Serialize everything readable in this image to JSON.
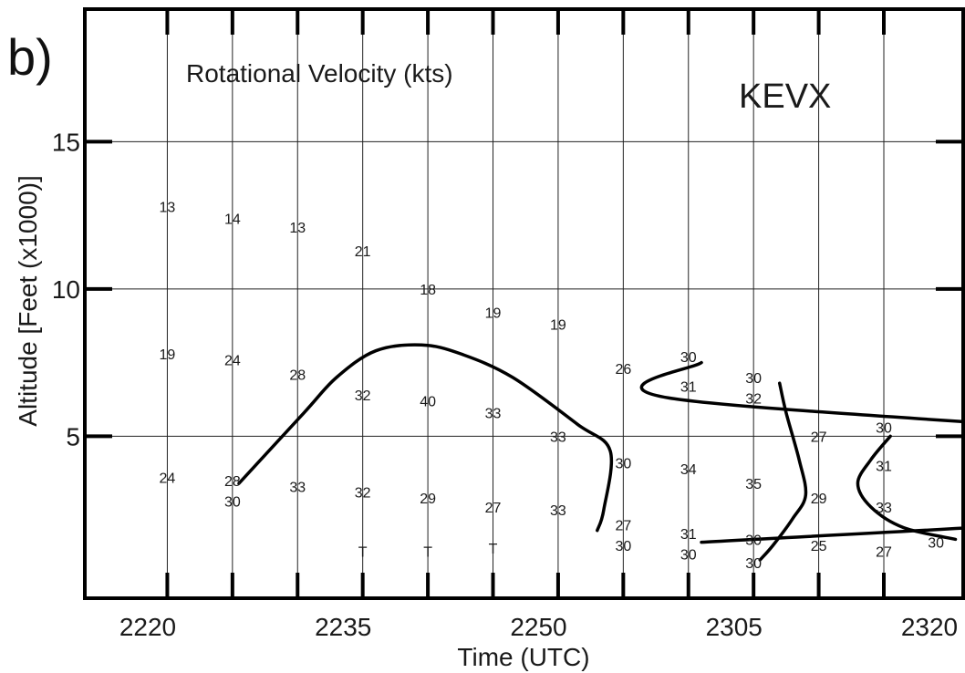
{
  "panel_label": "b)",
  "chart_data": {
    "type": "scatter",
    "title": "Rotational Velocity (kts)",
    "station": "KEVX",
    "xlabel": "Time (UTC)",
    "ylabel": "Altitude [Feet (x1000)]",
    "ylim": [
      -0.5,
      19.5
    ],
    "x_ticks": [
      "2220",
      "2235",
      "2250",
      "2305",
      "2320"
    ],
    "y_ticks": [
      5,
      10,
      15
    ],
    "grid": true,
    "volume_scans": [
      "2221.5",
      "2226.5",
      "2231.5",
      "2236.5",
      "2241.5",
      "2246.5",
      "2251.5",
      "2256.5",
      "2301.5",
      "2306.5",
      "2311.5",
      "2316.5"
    ],
    "values": [
      {
        "t": "2221.5",
        "alt": 12.8,
        "label": "13"
      },
      {
        "t": "2221.5",
        "alt": 7.8,
        "label": "19"
      },
      {
        "t": "2221.5",
        "alt": 3.6,
        "label": "24"
      },
      {
        "t": "2226.5",
        "alt": 12.4,
        "label": "14"
      },
      {
        "t": "2226.5",
        "alt": 7.6,
        "label": "24"
      },
      {
        "t": "2226.5",
        "alt": 3.5,
        "label": "28"
      },
      {
        "t": "2226.5",
        "alt": 2.8,
        "label": "30"
      },
      {
        "t": "2231.5",
        "alt": 12.1,
        "label": "13"
      },
      {
        "t": "2231.5",
        "alt": 7.1,
        "label": "28"
      },
      {
        "t": "2231.5",
        "alt": 3.3,
        "label": "33"
      },
      {
        "t": "2236.5",
        "alt": 11.3,
        "label": "21"
      },
      {
        "t": "2236.5",
        "alt": 6.4,
        "label": "32"
      },
      {
        "t": "2236.5",
        "alt": 3.1,
        "label": "32"
      },
      {
        "t": "2236.5",
        "alt": 1.1,
        "label": "T"
      },
      {
        "t": "2241.5",
        "alt": 10.0,
        "label": "18"
      },
      {
        "t": "2241.5",
        "alt": 6.2,
        "label": "40"
      },
      {
        "t": "2241.5",
        "alt": 2.9,
        "label": "29"
      },
      {
        "t": "2241.5",
        "alt": 1.1,
        "label": "T"
      },
      {
        "t": "2246.5",
        "alt": 9.2,
        "label": "19"
      },
      {
        "t": "2246.5",
        "alt": 5.8,
        "label": "33"
      },
      {
        "t": "2246.5",
        "alt": 2.6,
        "label": "27"
      },
      {
        "t": "2246.5",
        "alt": 1.2,
        "label": "T"
      },
      {
        "t": "2251.5",
        "alt": 8.8,
        "label": "19"
      },
      {
        "t": "2251.5",
        "alt": 5.0,
        "label": "33"
      },
      {
        "t": "2251.5",
        "alt": 2.5,
        "label": "33"
      },
      {
        "t": "2256.5",
        "alt": 7.3,
        "label": "26"
      },
      {
        "t": "2256.5",
        "alt": 4.1,
        "label": "30"
      },
      {
        "t": "2256.5",
        "alt": 2.0,
        "label": "27"
      },
      {
        "t": "2256.5",
        "alt": 1.3,
        "label": "30"
      },
      {
        "t": "2301.5",
        "alt": 7.7,
        "label": "30"
      },
      {
        "t": "2301.5",
        "alt": 6.7,
        "label": "31"
      },
      {
        "t": "2301.5",
        "alt": 3.9,
        "label": "34"
      },
      {
        "t": "2301.5",
        "alt": 1.7,
        "label": "31"
      },
      {
        "t": "2301.5",
        "alt": 1.0,
        "label": "30"
      },
      {
        "t": "2306.5",
        "alt": 7.0,
        "label": "30"
      },
      {
        "t": "2306.5",
        "alt": 6.3,
        "label": "32"
      },
      {
        "t": "2306.5",
        "alt": 3.4,
        "label": "35"
      },
      {
        "t": "2306.5",
        "alt": 1.5,
        "label": "30"
      },
      {
        "t": "2306.5",
        "alt": 0.7,
        "label": "30"
      },
      {
        "t": "2311.5",
        "alt": 5.0,
        "label": "27"
      },
      {
        "t": "2311.5",
        "alt": 2.9,
        "label": "29"
      },
      {
        "t": "2311.5",
        "alt": 1.3,
        "label": "25"
      },
      {
        "t": "2316.5",
        "alt": 5.3,
        "label": "30"
      },
      {
        "t": "2316.5",
        "alt": 4.0,
        "label": "31"
      },
      {
        "t": "2316.5",
        "alt": 2.6,
        "label": "33"
      },
      {
        "t": "2316.5",
        "alt": 1.1,
        "label": "27"
      },
      {
        "t": "2320.5",
        "alt": 1.4,
        "label": "30"
      }
    ],
    "contours": [
      {
        "label": "30",
        "points": [
          [
            "2227",
            3.4
          ],
          [
            "2232",
            5.8
          ],
          [
            "2234.5",
            7.0
          ],
          [
            "2237.5",
            7.9
          ],
          [
            "2241",
            8.1
          ],
          [
            "2244",
            7.8
          ],
          [
            "2248",
            7.0
          ],
          [
            "2253",
            5.4
          ],
          [
            "2255.5",
            4.5
          ],
          [
            "2255",
            2.5
          ],
          [
            "2254.5",
            1.8
          ]
        ]
      },
      {
        "label": "30",
        "points": [
          [
            "2302.5",
            7.5
          ],
          [
            "2300",
            6.3
          ],
          [
            "2297",
            5.0
          ],
          [
            "2296.5",
            4.3
          ],
          [
            "2297",
            3.3
          ],
          [
            "2299.5",
            2.4
          ],
          [
            "2302.5",
            1.4
          ]
        ]
      },
      {
        "label": "30",
        "points": [
          [
            "2308.5",
            6.8
          ],
          [
            "2309",
            5.8
          ],
          [
            "2310",
            4.2
          ],
          [
            "2310.5",
            3.0
          ],
          [
            "2309.5",
            2.2
          ],
          [
            "2308",
            1.3
          ],
          [
            "2307",
            0.8
          ]
        ]
      },
      {
        "label": "30",
        "points": [
          [
            "2317",
            5.0
          ],
          [
            "2315.5",
            4.2
          ],
          [
            "2314.5",
            3.4
          ],
          [
            "2315.5",
            2.6
          ],
          [
            "2318",
            1.9
          ],
          [
            "2322",
            1.5
          ]
        ]
      }
    ]
  }
}
